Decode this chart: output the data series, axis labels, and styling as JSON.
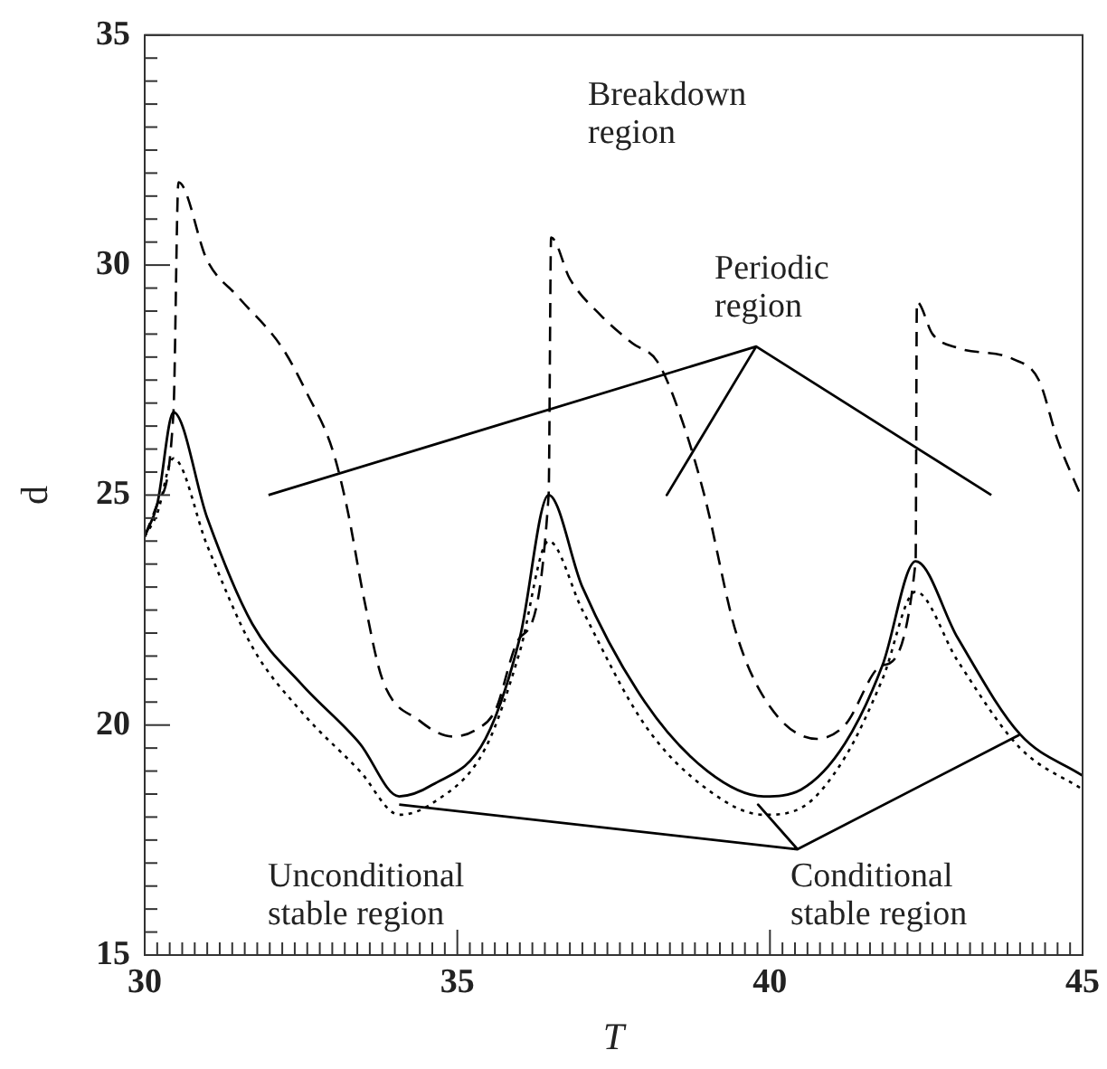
{
  "chart_data": {
    "type": "line",
    "xlabel": "T",
    "ylabel": "d",
    "marker": "none",
    "xlim": [
      30,
      45
    ],
    "ylim": [
      15,
      35
    ],
    "xticks": [
      30,
      {
        "value": 30.2,
        "label": null
      },
      {
        "value": 30.4,
        "label": null
      },
      {
        "value": 30.6,
        "label": null
      },
      {
        "value": 30.8,
        "label": null
      },
      {
        "value": 31,
        "label": null
      },
      {
        "value": 31.2,
        "label": null
      },
      {
        "value": 31.4,
        "label": null
      },
      {
        "value": 31.6,
        "label": null
      },
      {
        "value": 31.8,
        "label": null
      },
      {
        "value": 32,
        "label": null
      },
      {
        "value": 32.2,
        "label": null
      },
      {
        "value": 32.4,
        "label": null
      },
      {
        "value": 32.6,
        "label": null
      },
      {
        "value": 32.8,
        "label": null
      },
      {
        "value": 33,
        "label": null
      },
      {
        "value": 33.2,
        "label": null
      },
      {
        "value": 33.4,
        "label": null
      },
      {
        "value": 33.6,
        "label": null
      },
      {
        "value": 33.8,
        "label": null
      },
      {
        "value": 34,
        "label": null
      },
      {
        "value": 34.2,
        "label": null
      },
      {
        "value": 34.4,
        "label": null
      },
      {
        "value": 34.6,
        "label": null
      },
      {
        "value": 34.8,
        "label": null
      },
      35,
      {
        "value": 35.2,
        "label": null
      },
      {
        "value": 35.4,
        "label": null
      },
      {
        "value": 35.6,
        "label": null
      },
      {
        "value": 35.8,
        "label": null
      },
      {
        "value": 36,
        "label": null
      },
      {
        "value": 36.2,
        "label": null
      },
      {
        "value": 36.4,
        "label": null
      },
      {
        "value": 36.6,
        "label": null
      },
      {
        "value": 36.8,
        "label": null
      },
      {
        "value": 37,
        "label": null
      },
      {
        "value": 37.2,
        "label": null
      },
      {
        "value": 37.4,
        "label": null
      },
      {
        "value": 37.6,
        "label": null
      },
      {
        "value": 37.8,
        "label": null
      },
      {
        "value": 38,
        "label": null
      },
      {
        "value": 38.2,
        "label": null
      },
      {
        "value": 38.4,
        "label": null
      },
      {
        "value": 38.6,
        "label": null
      },
      {
        "value": 38.8,
        "label": null
      },
      {
        "value": 39,
        "label": null
      },
      {
        "value": 39.2,
        "label": null
      },
      {
        "value": 39.4,
        "label": null
      },
      {
        "value": 39.6,
        "label": null
      },
      {
        "value": 39.8,
        "label": null
      },
      40,
      {
        "value": 40.2,
        "label": null
      },
      {
        "value": 40.4,
        "label": null
      },
      {
        "value": 40.6,
        "label": null
      },
      {
        "value": 40.8,
        "label": null
      },
      {
        "value": 41,
        "label": null
      },
      {
        "value": 41.2,
        "label": null
      },
      {
        "value": 41.4,
        "label": null
      },
      {
        "value": 41.6,
        "label": null
      },
      {
        "value": 41.8,
        "label": null
      },
      {
        "value": 42,
        "label": null
      },
      {
        "value": 42.2,
        "label": null
      },
      {
        "value": 42.4,
        "label": null
      },
      {
        "value": 42.6,
        "label": null
      },
      {
        "value": 42.8,
        "label": null
      },
      {
        "value": 43,
        "label": null
      },
      {
        "value": 43.2,
        "label": null
      },
      {
        "value": 43.4,
        "label": null
      },
      {
        "value": 43.6,
        "label": null
      },
      {
        "value": 43.8,
        "label": null
      },
      {
        "value": 44,
        "label": null
      },
      {
        "value": 44.2,
        "label": null
      },
      {
        "value": 44.4,
        "label": null
      },
      {
        "value": 44.6,
        "label": null
      },
      {
        "value": 44.8,
        "label": null
      },
      45
    ],
    "yticks": [
      15,
      {
        "value": 15.5,
        "label": null
      },
      {
        "value": 16,
        "label": null
      },
      {
        "value": 16.5,
        "label": null
      },
      {
        "value": 17,
        "label": null
      },
      {
        "value": 17.5,
        "label": null
      },
      {
        "value": 18,
        "label": null
      },
      {
        "value": 18.5,
        "label": null
      },
      {
        "value": 19,
        "label": null
      },
      {
        "value": 19.5,
        "label": null
      },
      20,
      {
        "value": 20.5,
        "label": null
      },
      {
        "value": 21,
        "label": null
      },
      {
        "value": 21.5,
        "label": null
      },
      {
        "value": 22,
        "label": null
      },
      {
        "value": 22.5,
        "label": null
      },
      {
        "value": 23,
        "label": null
      },
      {
        "value": 23.5,
        "label": null
      },
      {
        "value": 24,
        "label": null
      },
      {
        "value": 24.5,
        "label": null
      },
      25,
      {
        "value": 25.5,
        "label": null
      },
      {
        "value": 26,
        "label": null
      },
      {
        "value": 26.5,
        "label": null
      },
      {
        "value": 27,
        "label": null
      },
      {
        "value": 27.5,
        "label": null
      },
      {
        "value": 28,
        "label": null
      },
      {
        "value": 28.5,
        "label": null
      },
      {
        "value": 29,
        "label": null
      },
      {
        "value": 29.5,
        "label": null
      },
      30,
      {
        "value": 30.5,
        "label": null
      },
      {
        "value": 31,
        "label": null
      },
      {
        "value": 31.5,
        "label": null
      },
      {
        "value": 32,
        "label": null
      },
      {
        "value": 32.5,
        "label": null
      },
      {
        "value": 33,
        "label": null
      },
      {
        "value": 33.5,
        "label": null
      },
      {
        "value": 34,
        "label": null
      },
      {
        "value": 34.5,
        "label": null
      },
      35
    ],
    "series": [
      {
        "color": "#000000",
        "line_style": "dashed",
        "x": [
          30,
          30.2,
          30.46,
          30.54,
          31,
          31.5,
          32.2,
          32.6,
          33,
          33.24,
          33.5,
          33.8,
          34.39,
          34.93,
          35.3,
          35.6,
          36,
          36.46,
          36.5,
          36.8,
          37.3,
          37.8,
          38.2,
          38.6,
          38.95,
          39.46,
          40,
          40.75,
          41.2,
          41.8,
          42.33,
          42.35,
          42.6,
          43,
          43.9,
          44.3,
          44.6,
          45
        ],
        "values": [
          24.1,
          24.8,
          26.8,
          31.8,
          30.1,
          29.3,
          28.2,
          27.2,
          26,
          24.7,
          22.8,
          21,
          20.1,
          19.75,
          19.9,
          20.3,
          21.9,
          25,
          30.6,
          29.7,
          28.9,
          28.3,
          27.9,
          26.6,
          25,
          22,
          20.4,
          19.7,
          20,
          21.3,
          23.56,
          29.2,
          28.5,
          28.2,
          27.95,
          27.5,
          26.2,
          24.9
        ]
      },
      {
        "color": "#000000",
        "line_style": "solid",
        "x": [
          30,
          30.2,
          30.46,
          31,
          31.72,
          32.5,
          33.44,
          34.07,
          34.6,
          35.45,
          36,
          36.46,
          37,
          38,
          39,
          39.9,
          40.5,
          41.2,
          41.8,
          42.33,
          43,
          44,
          45
        ],
        "values": [
          24.1,
          24.8,
          26.8,
          24.5,
          22.2,
          20.9,
          19.6,
          18.45,
          18.7,
          19.7,
          21.9,
          25,
          23,
          20.5,
          19,
          18.45,
          18.6,
          19.6,
          21.3,
          23.56,
          21.9,
          19.8,
          18.9
        ]
      },
      {
        "color": "#000000",
        "line_style": "dotted",
        "x": [
          30,
          30.2,
          30.46,
          31,
          31.72,
          32.5,
          33.44,
          34.07,
          34.6,
          35.45,
          36,
          36.46,
          37,
          38,
          39,
          39.9,
          40.5,
          41.2,
          41.8,
          42.33,
          43,
          44,
          45
        ],
        "values": [
          24.1,
          24.6,
          25.8,
          23.9,
          21.7,
          20.3,
          19,
          18.05,
          18.3,
          19.5,
          21.6,
          24,
          22.5,
          20,
          18.6,
          18.05,
          18.2,
          19.3,
          21,
          22.9,
          21.4,
          19.5,
          18.6
        ]
      },
      {
        "color": "#000000",
        "line_style": "solid",
        "x": [
          31.98,
          39.78,
          38.35,
          39.78,
          43.54
        ],
        "values": [
          25,
          28.23,
          25,
          28.23,
          25
        ]
      },
      {
        "color": "#000000",
        "line_style": "solid",
        "x": [
          34.07,
          40.44,
          39.81,
          40.44,
          43.99
        ],
        "values": [
          18.27,
          17.3,
          18.27,
          17.3,
          19.79
        ]
      }
    ],
    "annotations": [
      "Breakdown region",
      "Periodic region",
      "Unconditional stable region",
      "Conditional stable region"
    ]
  }
}
